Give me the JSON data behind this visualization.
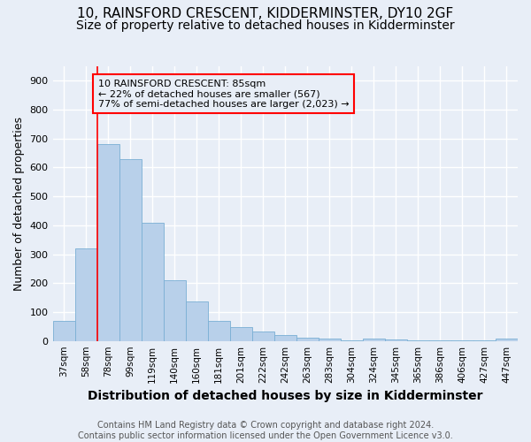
{
  "title": "10, RAINSFORD CRESCENT, KIDDERMINSTER, DY10 2GF",
  "subtitle": "Size of property relative to detached houses in Kidderminster",
  "xlabel": "Distribution of detached houses by size in Kidderminster",
  "ylabel": "Number of detached properties",
  "categories": [
    "37sqm",
    "58sqm",
    "78sqm",
    "99sqm",
    "119sqm",
    "140sqm",
    "160sqm",
    "181sqm",
    "201sqm",
    "222sqm",
    "242sqm",
    "263sqm",
    "283sqm",
    "304sqm",
    "324sqm",
    "345sqm",
    "365sqm",
    "386sqm",
    "406sqm",
    "427sqm",
    "447sqm"
  ],
  "values": [
    70,
    320,
    680,
    630,
    410,
    210,
    138,
    68,
    47,
    33,
    20,
    10,
    8,
    3,
    8,
    5,
    3,
    2,
    2,
    2,
    8
  ],
  "bar_color": "#b8d0ea",
  "bar_edge_color": "#7aafd4",
  "bar_linewidth": 0.6,
  "ylim": [
    0,
    950
  ],
  "yticks": [
    0,
    100,
    200,
    300,
    400,
    500,
    600,
    700,
    800,
    900
  ],
  "red_line_x": 1.5,
  "annotation_text": "10 RAINSFORD CRESCENT: 85sqm\n← 22% of detached houses are smaller (567)\n77% of semi-detached houses are larger (2,023) →",
  "footer_line1": "Contains HM Land Registry data © Crown copyright and database right 2024.",
  "footer_line2": "Contains public sector information licensed under the Open Government Licence v3.0.",
  "background_color": "#e8eef7",
  "grid_color": "#ffffff",
  "title_fontsize": 11,
  "subtitle_fontsize": 10,
  "xlabel_fontsize": 10,
  "ylabel_fontsize": 9,
  "footer_fontsize": 7
}
